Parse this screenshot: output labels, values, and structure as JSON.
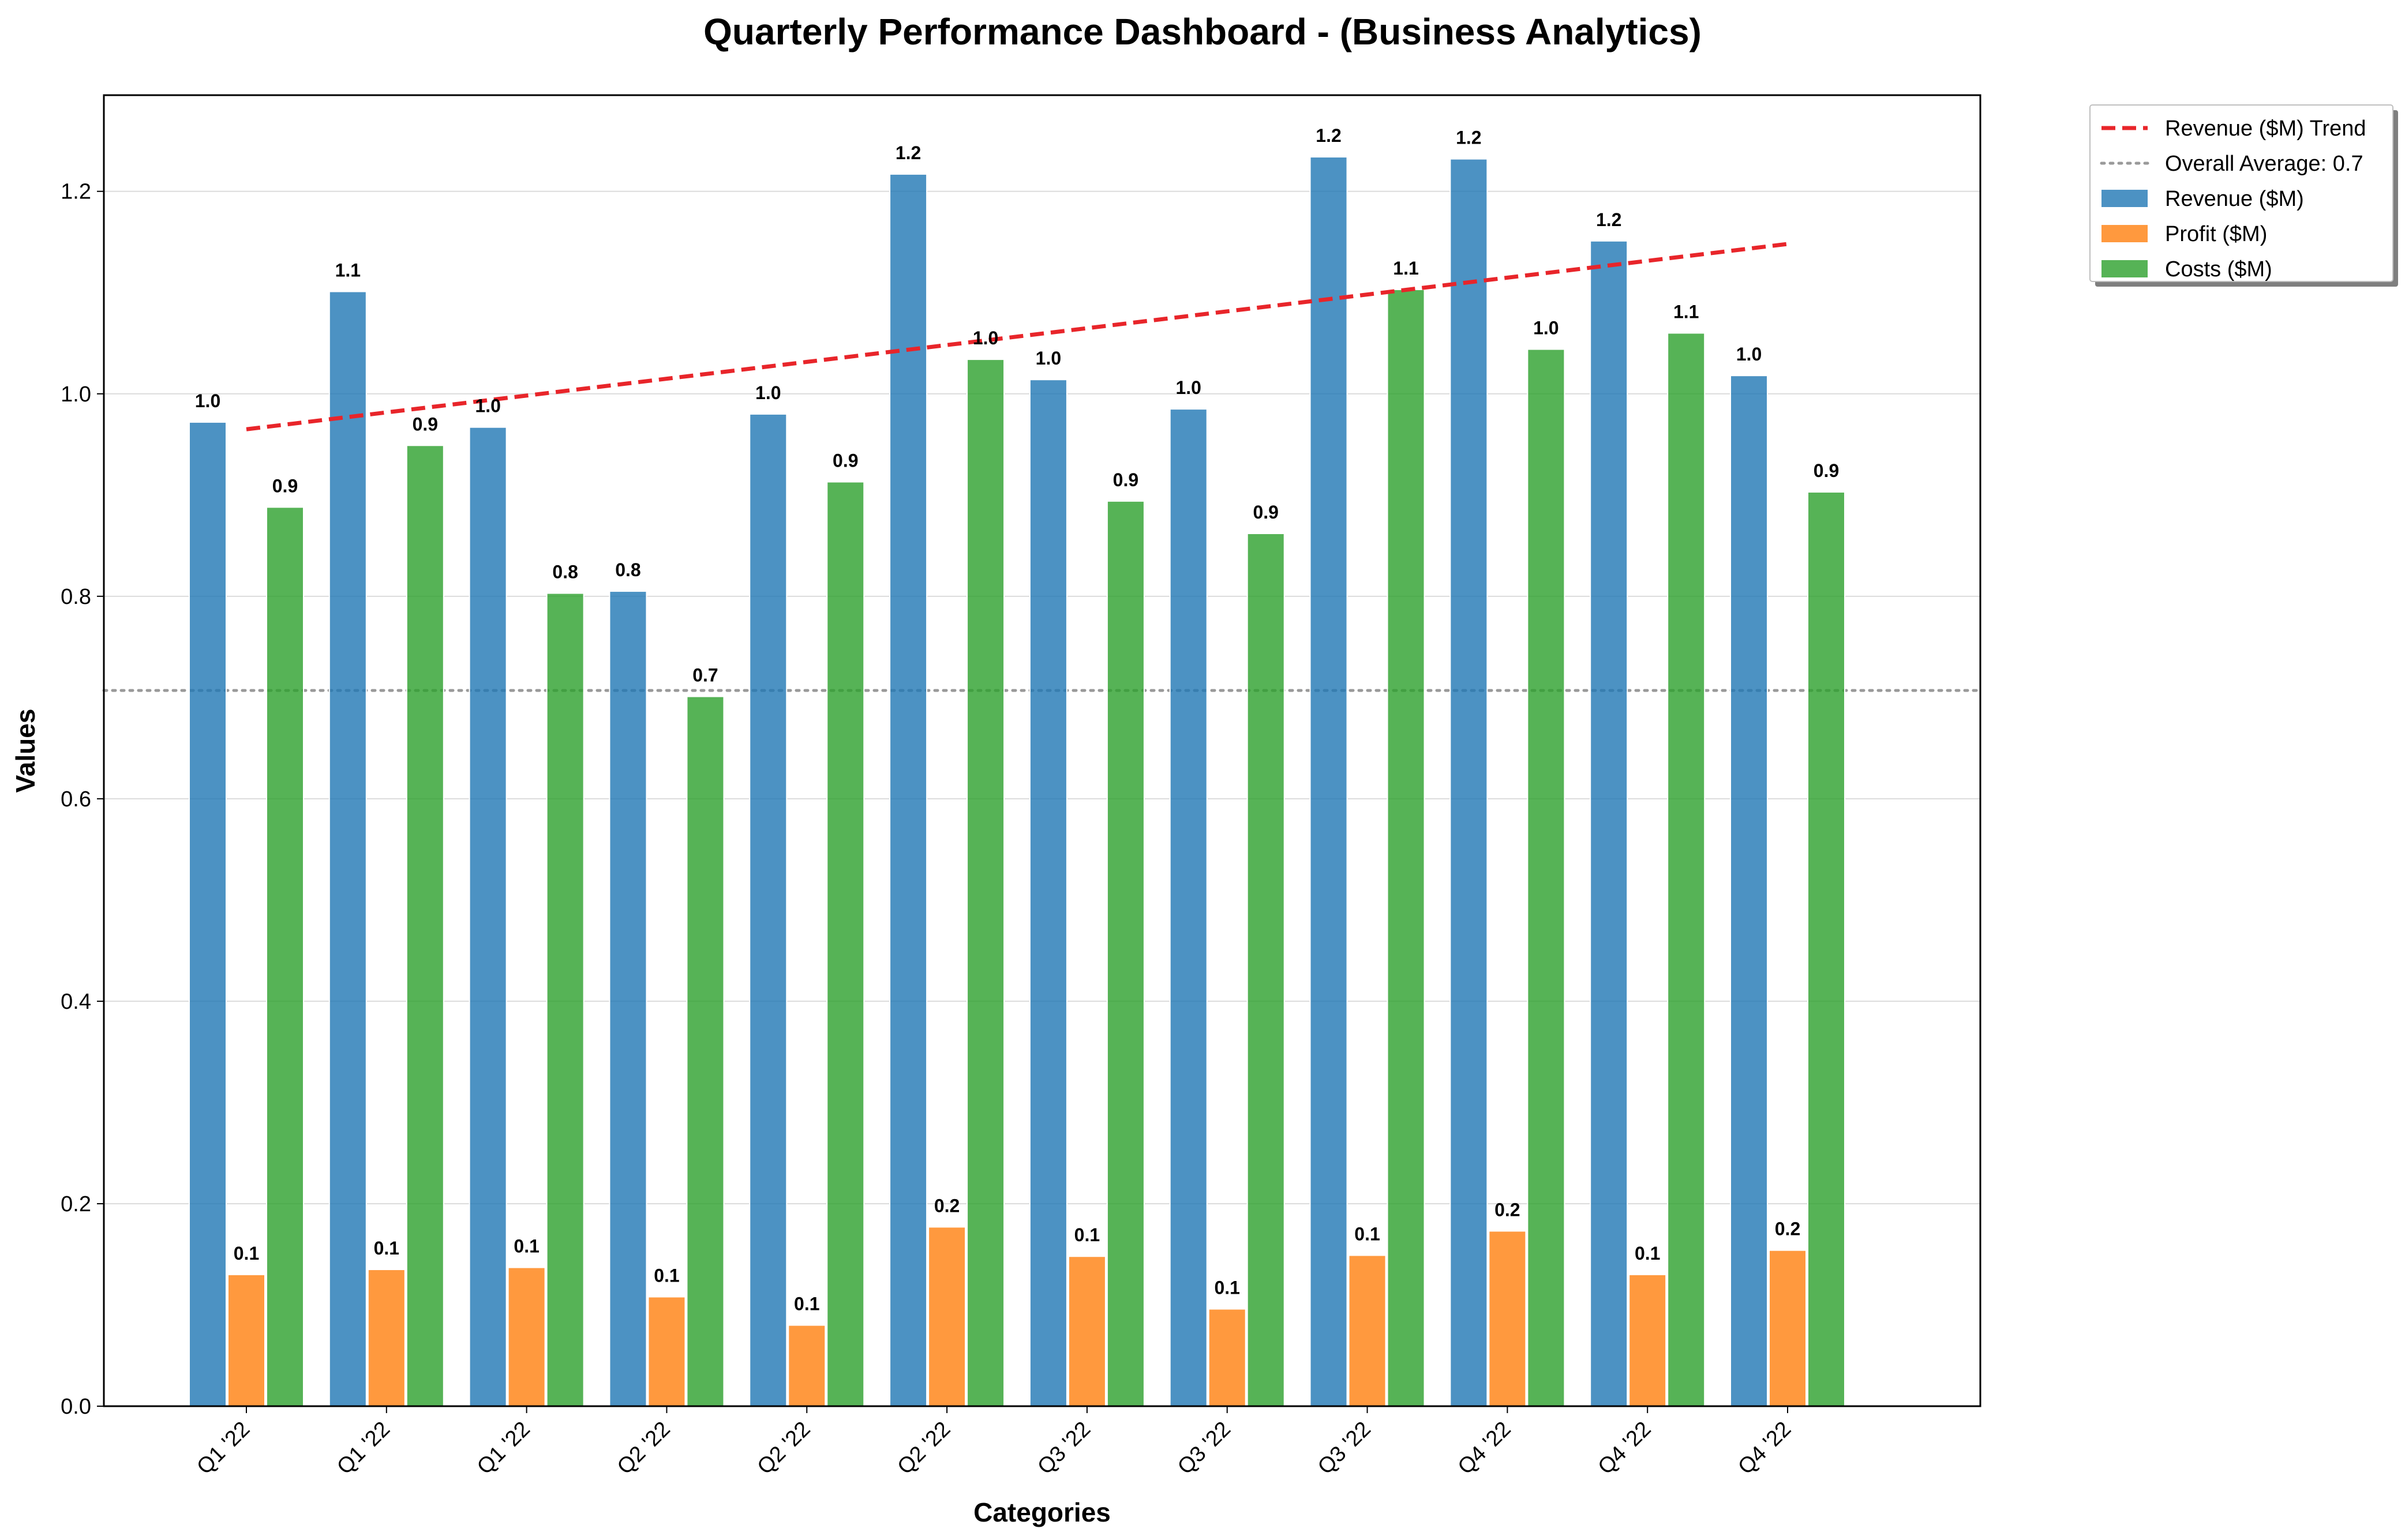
{
  "chart_data": {
    "type": "bar",
    "title": "Quarterly Performance Dashboard - (Business Analytics)",
    "xlabel": "Categories",
    "ylabel": "Values",
    "categories": [
      "Q1 '22",
      "Q1 '22",
      "Q1 '22",
      "Q2 '22",
      "Q2 '22",
      "Q2 '22",
      "Q3 '22",
      "Q3 '22",
      "Q3 '22",
      "Q4 '22",
      "Q4 '22",
      "Q4 '22"
    ],
    "ylim": [
      0,
      1.295
    ],
    "yticks": [
      "0.0",
      "0.2",
      "0.4",
      "0.6",
      "0.8",
      "1.0",
      "1.2"
    ],
    "grid": "horizontal",
    "legend_position": "outside-top-right",
    "series": [
      {
        "name": "Revenue ($M)",
        "color": "#1f77b4",
        "values": [
          0.972,
          1.101,
          0.967,
          0.805,
          0.98,
          1.217,
          1.014,
          0.985,
          1.234,
          1.232,
          1.151,
          1.018
        ],
        "labels": [
          "1.0",
          "1.1",
          "1.0",
          "0.8",
          "1.0",
          "1.2",
          "1.0",
          "1.0",
          "1.2",
          "1.2",
          "1.2",
          "1.0"
        ]
      },
      {
        "name": "Profit ($M)",
        "color": "#ff7f0e",
        "values": [
          0.13,
          0.135,
          0.137,
          0.108,
          0.08,
          0.177,
          0.148,
          0.096,
          0.149,
          0.173,
          0.13,
          0.154
        ],
        "labels": [
          "0.1",
          "0.1",
          "0.1",
          "0.1",
          "0.1",
          "0.2",
          "0.1",
          "0.1",
          "0.1",
          "0.2",
          "0.1",
          "0.2"
        ]
      },
      {
        "name": "Costs ($M)",
        "color": "#2ca02c",
        "values": [
          0.888,
          0.949,
          0.803,
          0.701,
          0.913,
          1.034,
          0.894,
          0.862,
          1.103,
          1.044,
          1.06,
          0.903
        ],
        "labels": [
          "0.9",
          "0.9",
          "0.8",
          "0.7",
          "0.9",
          "1.0",
          "0.9",
          "0.9",
          "1.1",
          "1.0",
          "1.1",
          "0.9"
        ]
      }
    ],
    "trend_line": {
      "name": "Revenue ($M) Trend",
      "color": "#e8252a",
      "style": "dashed",
      "start": 0.965,
      "end": 1.148
    },
    "average_line": {
      "name": "Overall Average: 0.7",
      "value": 0.707,
      "color": "#9a9a9a",
      "style": "dotted"
    }
  }
}
